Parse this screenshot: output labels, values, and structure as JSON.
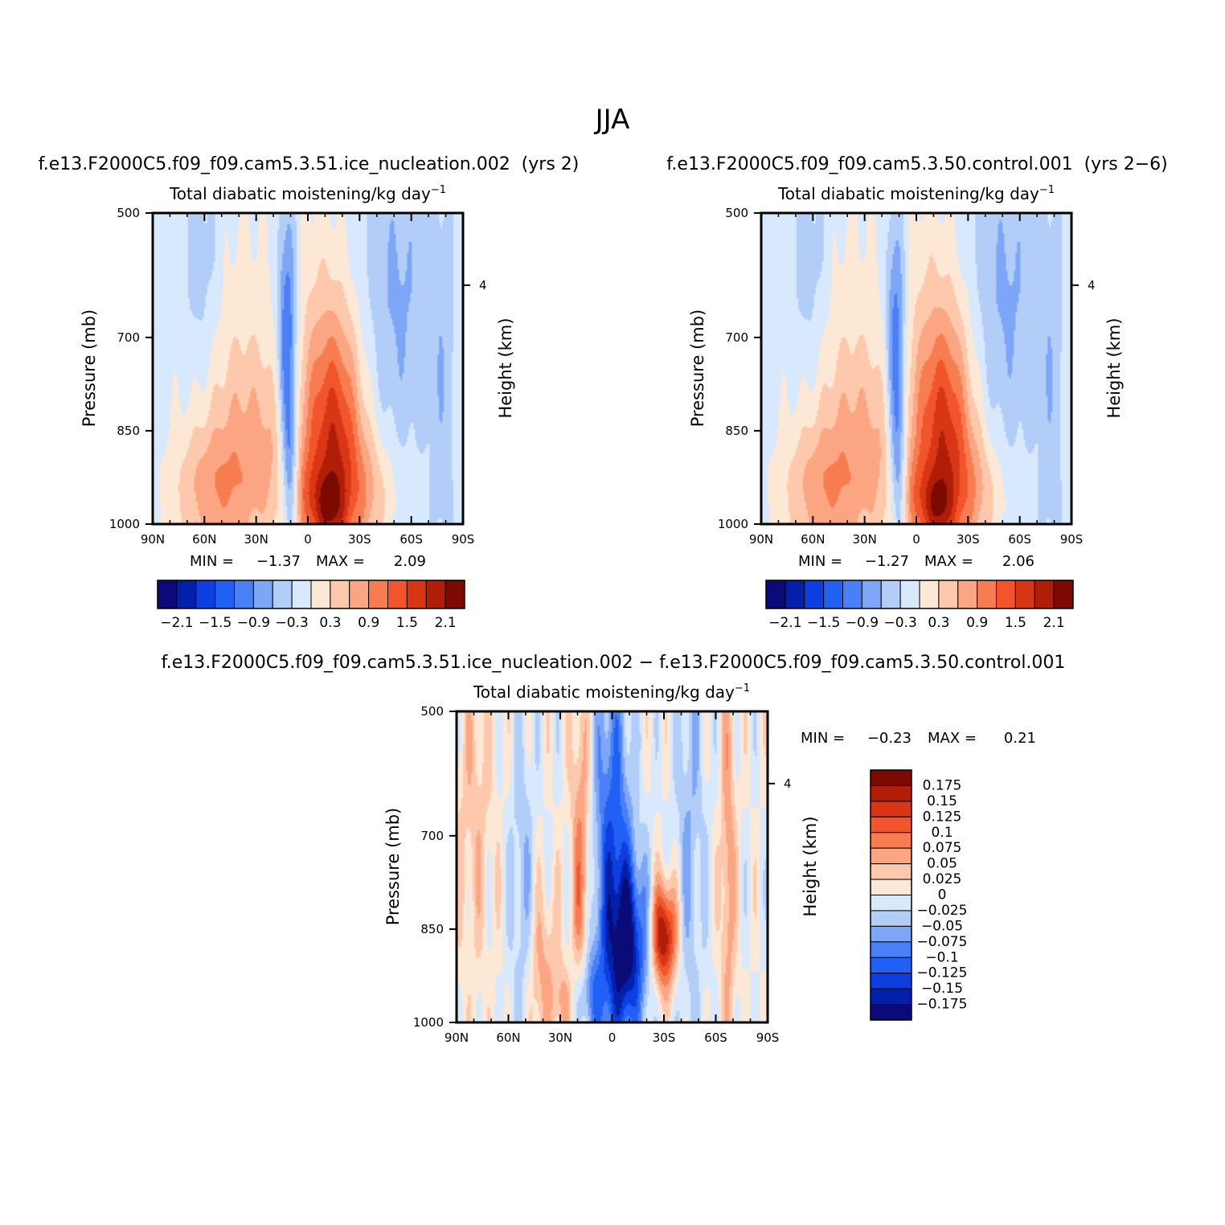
{
  "chart_data": [
    {
      "type": "heatmap",
      "id": "p1",
      "figure_title": "JJA",
      "case_title": "f.e13.F2000C5.f09_f09.cam5.3.51.ice_nucleation.002  (yrs 2)",
      "title": "Total diabatic moistening/kg day",
      "title_exp": "−1",
      "ylabel": "Pressure (mb)",
      "ylabel_right": "Height (km)",
      "x_ticks": [
        "90N",
        "60N",
        "30N",
        "0",
        "30S",
        "60S",
        "90S"
      ],
      "y_ticks": [
        "500",
        "700",
        "850",
        "1000"
      ],
      "y_tick_values": [
        500,
        700,
        850,
        1000
      ],
      "ylim": [
        500,
        1000
      ],
      "xlim": [
        90,
        -90
      ],
      "right_ticks": [
        "4"
      ],
      "min_label": "MIN =",
      "min_value": "−1.37",
      "max_label": "MAX =",
      "max_value": "2.09",
      "colorbar_labels": [
        "−2.1",
        "−1.5",
        "−0.9",
        "−0.3",
        "0.3",
        "0.9",
        "1.5",
        "2.1"
      ],
      "levels": [
        -2.1,
        -1.8,
        -1.5,
        -1.2,
        -0.9,
        -0.6,
        -0.3,
        0,
        0.3,
        0.6,
        0.9,
        1.2,
        1.5,
        1.8,
        2.1
      ],
      "field": [
        {
          "lat": 12,
          "p": 720,
          "amp": -1.3,
          "sx": 4,
          "sp": 160
        },
        {
          "lat": 10,
          "p": 900,
          "amp": -0.8,
          "sx": 3,
          "sp": 90
        },
        {
          "lat": -15,
          "p": 880,
          "amp": 1.8,
          "sx": 12,
          "sp": 150
        },
        {
          "lat": -12,
          "p": 975,
          "amp": 0.9,
          "sx": 6,
          "sp": 40
        },
        {
          "lat": -5,
          "p": 610,
          "amp": 0.2,
          "sx": 12,
          "sp": 140
        },
        {
          "lat": 30,
          "p": 900,
          "amp": 0.7,
          "sx": 22,
          "sp": 120
        },
        {
          "lat": 58,
          "p": 950,
          "amp": 0.6,
          "sx": 15,
          "sp": 70
        },
        {
          "lat": 45,
          "p": 720,
          "amp": 0.3,
          "sx": 22,
          "sp": 200
        },
        {
          "lat": 62,
          "p": 600,
          "amp": -0.45,
          "sx": 9,
          "sp": 150
        },
        {
          "lat": -52,
          "p": 640,
          "amp": -0.5,
          "sx": 14,
          "sp": 180
        },
        {
          "lat": -78,
          "p": 780,
          "amp": -0.35,
          "sx": 5,
          "sp": 200
        },
        {
          "lat": -35,
          "p": 950,
          "amp": 0.6,
          "sx": 12,
          "sp": 70
        },
        {
          "lat": 0,
          "p": 960,
          "amp": 0.5,
          "sx": 5,
          "sp": 50
        }
      ],
      "base_value": -0.15
    },
    {
      "type": "heatmap",
      "id": "p2",
      "case_title": "f.e13.F2000C5.f09_f09.cam5.3.50.control.001  (yrs 2−6)",
      "title": "Total diabatic moistening/kg day",
      "title_exp": "−1",
      "ylabel": "Pressure (mb)",
      "ylabel_right": "Height (km)",
      "x_ticks": [
        "90N",
        "60N",
        "30N",
        "0",
        "30S",
        "60S",
        "90S"
      ],
      "y_ticks": [
        "500",
        "700",
        "850",
        "1000"
      ],
      "y_tick_values": [
        500,
        700,
        850,
        1000
      ],
      "ylim": [
        500,
        1000
      ],
      "xlim": [
        90,
        -90
      ],
      "right_ticks": [
        "4"
      ],
      "min_label": "MIN =",
      "min_value": "−1.27",
      "max_label": "MAX =",
      "max_value": "2.06",
      "colorbar_labels": [
        "−2.1",
        "−1.5",
        "−0.9",
        "−0.3",
        "0.3",
        "0.9",
        "1.5",
        "2.1"
      ],
      "levels": [
        -2.1,
        -1.8,
        -1.5,
        -1.2,
        -0.9,
        -0.6,
        -0.3,
        0,
        0.3,
        0.6,
        0.9,
        1.2,
        1.5,
        1.8,
        2.1
      ],
      "field": [
        {
          "lat": 12,
          "p": 730,
          "amp": -1.2,
          "sx": 4,
          "sp": 160
        },
        {
          "lat": 10,
          "p": 900,
          "amp": -0.7,
          "sx": 3,
          "sp": 90
        },
        {
          "lat": -16,
          "p": 870,
          "amp": 1.75,
          "sx": 12,
          "sp": 150
        },
        {
          "lat": -12,
          "p": 975,
          "amp": 0.9,
          "sx": 6,
          "sp": 40
        },
        {
          "lat": -5,
          "p": 610,
          "amp": 0.2,
          "sx": 12,
          "sp": 140
        },
        {
          "lat": 30,
          "p": 900,
          "amp": 0.7,
          "sx": 22,
          "sp": 120
        },
        {
          "lat": 58,
          "p": 950,
          "amp": 0.6,
          "sx": 15,
          "sp": 70
        },
        {
          "lat": 45,
          "p": 720,
          "amp": 0.3,
          "sx": 22,
          "sp": 200
        },
        {
          "lat": 62,
          "p": 600,
          "amp": -0.45,
          "sx": 9,
          "sp": 150
        },
        {
          "lat": -52,
          "p": 640,
          "amp": -0.5,
          "sx": 14,
          "sp": 180
        },
        {
          "lat": -78,
          "p": 780,
          "amp": -0.35,
          "sx": 5,
          "sp": 200
        },
        {
          "lat": -35,
          "p": 950,
          "amp": 0.6,
          "sx": 12,
          "sp": 70
        },
        {
          "lat": 0,
          "p": 960,
          "amp": 0.5,
          "sx": 5,
          "sp": 50
        }
      ],
      "base_value": -0.15
    },
    {
      "type": "heatmap",
      "id": "p3",
      "case_title": "f.e13.F2000C5.f09_f09.cam5.3.51.ice_nucleation.002 − f.e13.F2000C5.f09_f09.cam5.3.50.control.001",
      "title": "Total diabatic moistening/kg day",
      "title_exp": "−1",
      "ylabel": "Pressure (mb)",
      "ylabel_right": "Height (km)",
      "x_ticks": [
        "90N",
        "60N",
        "30N",
        "0",
        "30S",
        "60S",
        "90S"
      ],
      "y_ticks": [
        "500",
        "700",
        "850",
        "1000"
      ],
      "y_tick_values": [
        500,
        700,
        850,
        1000
      ],
      "ylim": [
        500,
        1000
      ],
      "xlim": [
        90,
        -90
      ],
      "right_ticks": [
        "4"
      ],
      "min_label": "MIN =",
      "min_value": "−0.23",
      "max_label": "MAX =",
      "max_value": "0.21",
      "colorbar_labels": [
        "0.175",
        "0.15",
        "0.125",
        "0.1",
        "0.075",
        "0.05",
        "0.025",
        "0",
        "−0.025",
        "−0.05",
        "−0.075",
        "−0.1",
        "−0.125",
        "−0.15",
        "−0.175"
      ],
      "levels": [
        -0.175,
        -0.15,
        -0.125,
        -0.1,
        -0.075,
        -0.05,
        -0.025,
        0,
        0.025,
        0.05,
        0.075,
        0.1,
        0.125,
        0.15,
        0.175
      ],
      "field": [
        {
          "lat": 0,
          "p": 750,
          "amp": -0.12,
          "sx": 8,
          "sp": 250
        },
        {
          "lat": -10,
          "p": 880,
          "amp": -0.15,
          "sx": 8,
          "sp": 100
        },
        {
          "lat": -30,
          "p": 860,
          "amp": 0.19,
          "sx": 5,
          "sp": 60
        },
        {
          "lat": 18,
          "p": 800,
          "amp": 0.09,
          "sx": 4,
          "sp": 250
        },
        {
          "lat": 40,
          "p": 930,
          "amp": 0.06,
          "sx": 7,
          "sp": 100
        },
        {
          "lat": -67,
          "p": 750,
          "amp": 0.07,
          "sx": 3,
          "sp": 250
        },
        {
          "lat": 15,
          "p": 960,
          "amp": -0.1,
          "sx": 6,
          "sp": 60
        },
        {
          "lat": 52,
          "p": 800,
          "amp": -0.05,
          "sx": 5,
          "sp": 200
        },
        {
          "lat": 80,
          "p": 650,
          "amp": 0.04,
          "sx": 8,
          "sp": 200
        },
        {
          "lat": -45,
          "p": 700,
          "amp": -0.05,
          "sx": 6,
          "sp": 250
        },
        {
          "lat": 28,
          "p": 970,
          "amp": 0.06,
          "sx": 3,
          "sp": 40
        }
      ],
      "base_value": 0.0
    }
  ],
  "colors": {
    "palette": [
      "#0a0a78",
      "#0320a8",
      "#0c3ee0",
      "#2160f5",
      "#4a80f7",
      "#7da6f7",
      "#b2cdf8",
      "#d8e8fd",
      "#fde8d6",
      "#fdc8ac",
      "#fba582",
      "#f77c50",
      "#f2542c",
      "#d83614",
      "#b11e08",
      "#7c0a02"
    ]
  }
}
